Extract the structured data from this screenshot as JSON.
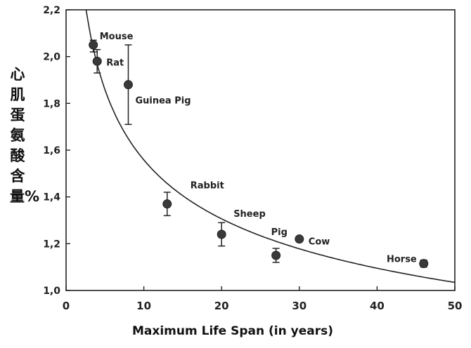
{
  "chart_data": {
    "type": "scatter",
    "title": "",
    "xlabel": "Maximum Life Span (in years)",
    "ylabel": "心肌蛋氨酸含量%",
    "xlim": [
      0,
      50
    ],
    "ylim": [
      1.0,
      2.2
    ],
    "x_ticks": [
      "0",
      "10",
      "20",
      "30",
      "40",
      "50"
    ],
    "y_ticks": [
      "1,0",
      "1,2",
      "1,4",
      "1,6",
      "1,8",
      "2,0",
      "2,2"
    ],
    "grid": false,
    "points": [
      {
        "label": "Mouse",
        "x": 3.5,
        "y": 2.05,
        "err_low": 2.02,
        "err_high": 2.07
      },
      {
        "label": "Rat",
        "x": 4,
        "y": 1.98,
        "err_low": 1.93,
        "err_high": 2.03
      },
      {
        "label": "Guinea Pig",
        "x": 8,
        "y": 1.88,
        "err_low": 1.71,
        "err_high": 2.05
      },
      {
        "label": "Rabbit",
        "x": 13,
        "y": 1.37,
        "err_low": 1.32,
        "err_high": 1.42
      },
      {
        "label": "Sheep",
        "x": 20,
        "y": 1.24,
        "err_low": 1.19,
        "err_high": 1.29
      },
      {
        "label": "Pig",
        "x": 27,
        "y": 1.15,
        "err_low": 1.12,
        "err_high": 1.18
      },
      {
        "label": "Cow",
        "x": 30,
        "y": 1.22,
        "err_low": null,
        "err_high": null
      },
      {
        "label": "Horse",
        "x": 46,
        "y": 1.115,
        "err_low": 1.1,
        "err_high": 1.13
      }
    ],
    "fit_curve": {
      "form": "y = 2.8 * x^-0.2545",
      "a": 2.8,
      "b": -0.2545,
      "x_from": 2.5,
      "x_to": 50
    }
  }
}
